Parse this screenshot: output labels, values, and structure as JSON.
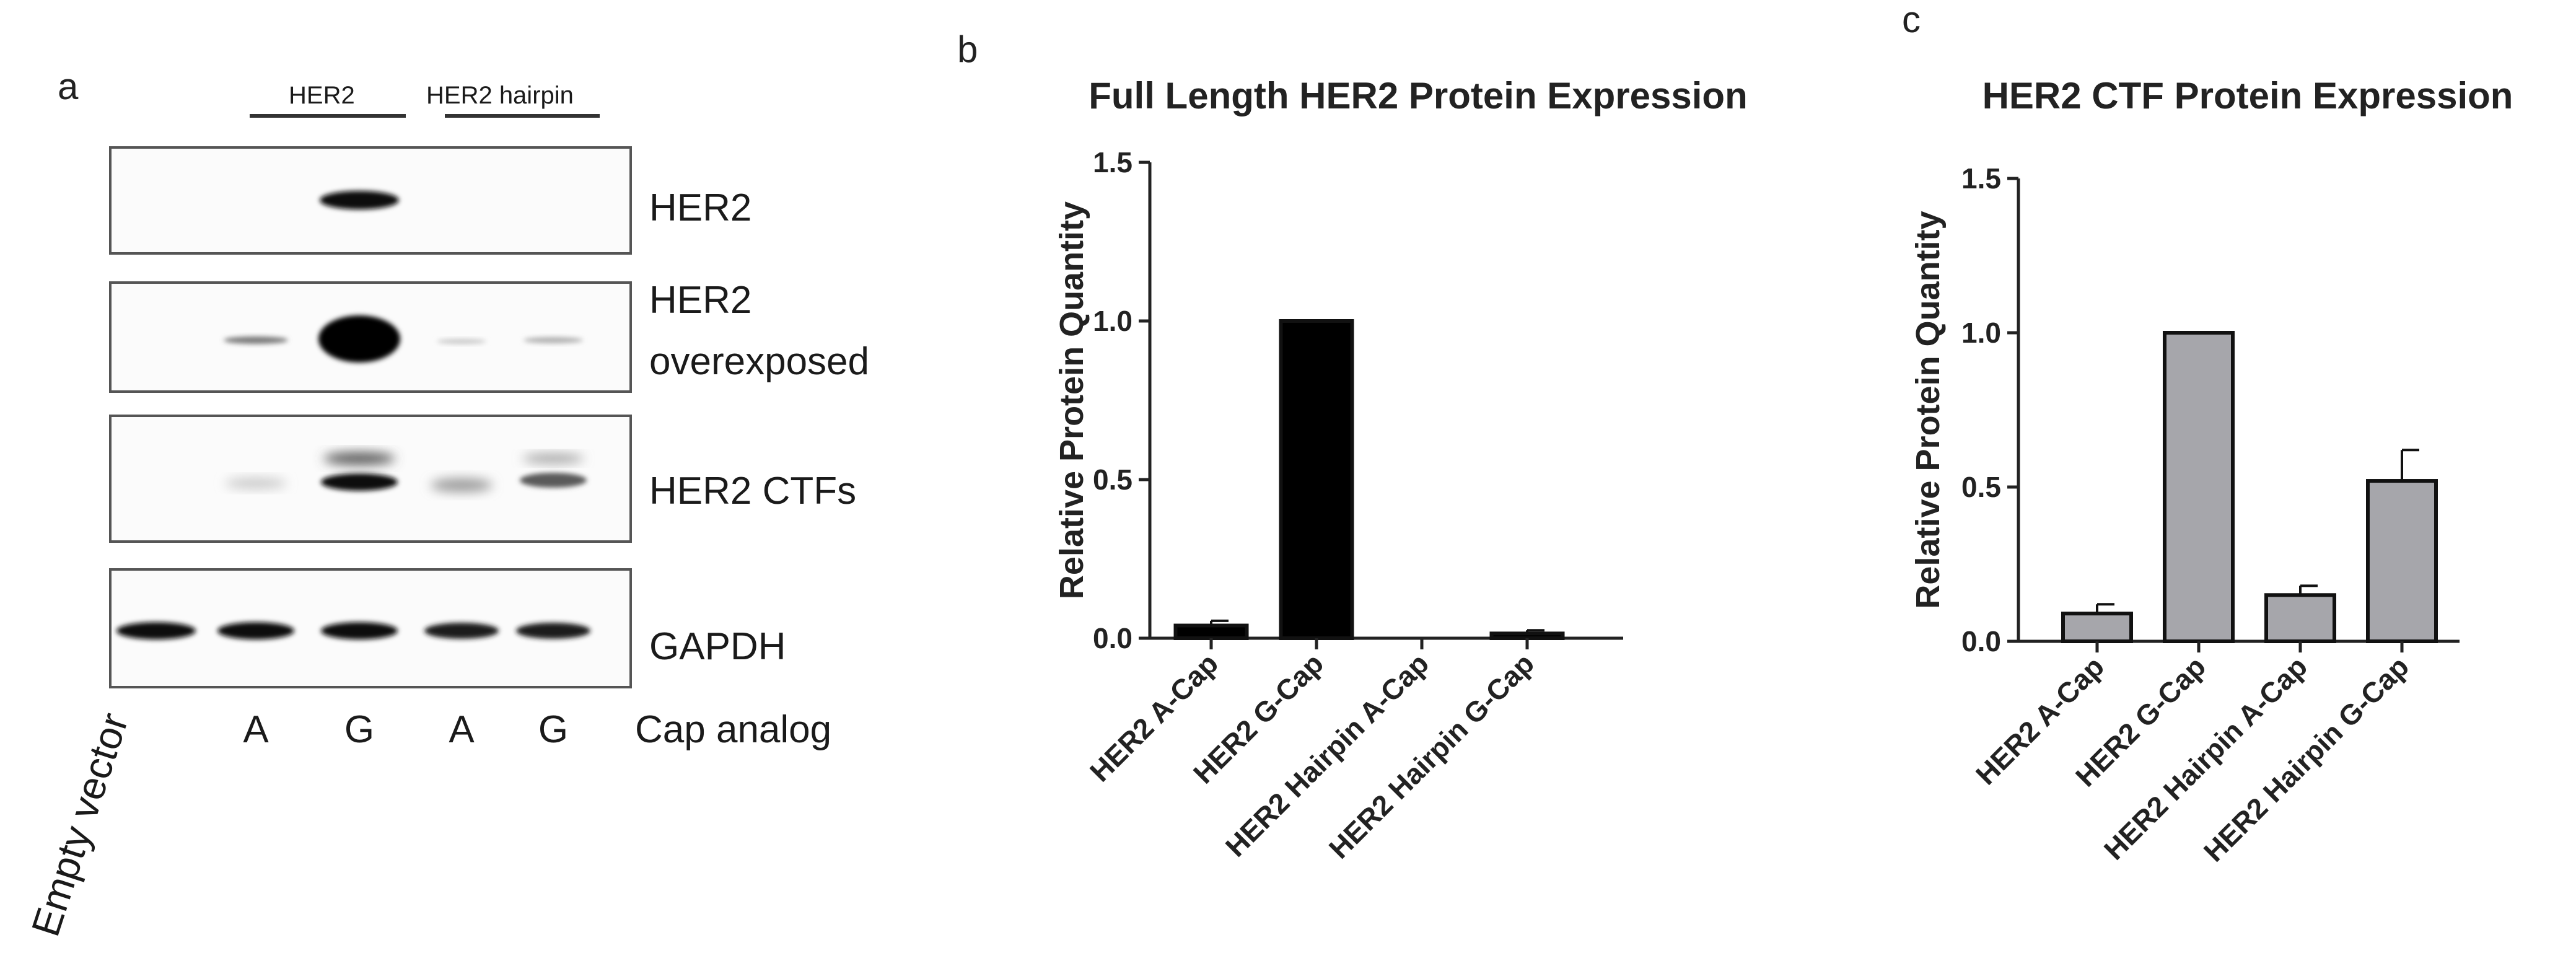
{
  "panels": {
    "a": "a",
    "b": "b",
    "c": "c"
  },
  "blot": {
    "group_labels": [
      "HER2",
      "HER2 hairpin"
    ],
    "row_labels": {
      "her2": "HER2",
      "overexposed_line1": "HER2",
      "overexposed_line2": "overexposed",
      "ctfs": "HER2 CTFs",
      "gapdh": "GAPDH"
    },
    "lane_labels": {
      "empty": "Empty vector",
      "lane2": "A",
      "lane3": "G",
      "lane4": "A",
      "lane5": "G",
      "caption": "Cap analog"
    }
  },
  "chart_data": [
    {
      "type": "bar",
      "title": "Full Length HER2 Protein Expression",
      "ylabel": "Relative Protein  Quantity",
      "categories": [
        "HER2 A-Cap",
        "HER2 G-Cap",
        "HER2 Hairpin A-Cap",
        "HER2 Hairpin G-Cap"
      ],
      "values": [
        0.04,
        1.0,
        0.0,
        0.015
      ],
      "errors": [
        0.015,
        0.0,
        0.0,
        0.01
      ],
      "ylim": [
        0,
        1.5
      ],
      "yticks": [
        "0.0",
        "0.5",
        "1.0",
        "1.5"
      ],
      "bar_color": "#000000"
    },
    {
      "type": "bar",
      "title": "HER2 CTF Protein Expression",
      "ylabel": "Relative Protein  Quantity",
      "categories": [
        "HER2 A-Cap",
        "HER2 G-Cap",
        "HER2 Hairpin A-Cap",
        "HER2 Hairpin G-Cap"
      ],
      "values": [
        0.09,
        1.0,
        0.15,
        0.52
      ],
      "errors": [
        0.03,
        0.0,
        0.03,
        0.1
      ],
      "ylim": [
        0,
        1.5
      ],
      "yticks": [
        "0.0",
        "0.5",
        "1.0",
        "1.5"
      ],
      "bar_color": "#a6a6ab"
    }
  ]
}
